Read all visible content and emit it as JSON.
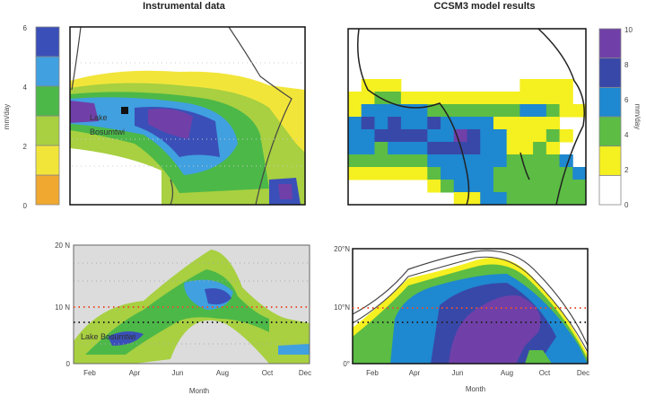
{
  "chart_data": [
    {
      "type": "heatmap",
      "panel": "top-left",
      "title": "Instrumental data",
      "colorbar": {
        "label": "mm/day",
        "ticks": [
          "0",
          "2",
          "4",
          "6"
        ],
        "range": [
          0,
          6
        ],
        "colors": [
          "#f0a830",
          "#f2e53a",
          "#a8d040",
          "#4cb848",
          "#40a0e0",
          "#3a50b8"
        ]
      },
      "annotation": "Lake Bosumtwi",
      "annotation_lines": [
        "Lake",
        "Bosumtwi"
      ],
      "extra_color": "#7040a8"
    },
    {
      "type": "heatmap",
      "panel": "top-right",
      "title": "CCSM3 model results",
      "colorbar": {
        "label": "mm/day",
        "ticks": [
          "0",
          "2",
          "4",
          "6",
          "8",
          "10"
        ],
        "range": [
          0,
          10
        ],
        "colors": [
          "#ffffff",
          "#f5f020",
          "#5cbc44",
          "#1e88d0",
          "#3848a8",
          "#7040a8"
        ]
      }
    },
    {
      "type": "heatmap",
      "panel": "bottom-left",
      "xlabel": "Month",
      "xticks": [
        "Feb",
        "Apr",
        "Jun",
        "Aug",
        "Oct",
        "Dec"
      ],
      "yticks": [
        "0",
        "10 N",
        "20 N"
      ],
      "ylim": [
        0,
        20
      ],
      "annotation": "Lake Bosumtwi",
      "reference_lines": [
        {
          "color": "#e85030",
          "lat": 9.5
        },
        {
          "color": "#222222",
          "lat": 6.5
        }
      ]
    },
    {
      "type": "heatmap",
      "panel": "bottom-right",
      "xlabel": "Month",
      "xticks": [
        "Feb",
        "Apr",
        "Jun",
        "Aug",
        "Oct",
        "Dec"
      ],
      "yticks": [
        "0°",
        "10°N",
        "20°N"
      ],
      "ylim": [
        0,
        20
      ],
      "reference_lines": [
        {
          "color": "#e85030",
          "lat": 9.5
        },
        {
          "color": "#222222",
          "lat": 6.5
        }
      ]
    }
  ]
}
